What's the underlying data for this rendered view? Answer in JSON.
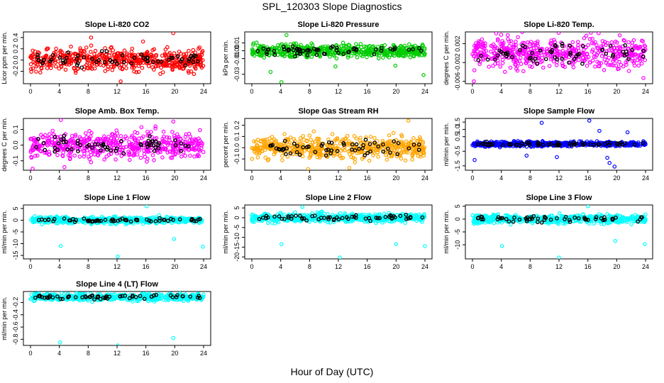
{
  "figure": {
    "title": "SPL_120303  Slope Diagnostics",
    "xlabel": "Hour of Day (UTC)"
  },
  "chart_data": [
    {
      "type": "scatter",
      "title": "Slope Li-820 CO2",
      "ylabel": "Licor ppm per min.",
      "color": "#ff0000",
      "x_ticks": [
        "0",
        "4",
        "8",
        "12",
        "16",
        "20",
        "24"
      ],
      "xlim": [
        0,
        24
      ],
      "y_ticks": [
        {
          "v": -0.2,
          "label": "-0.2"
        },
        {
          "v": 0.0,
          "label": "0.0"
        },
        {
          "v": 0.2,
          "label": "0.2"
        },
        {
          "v": 0.4,
          "label": "0.4"
        }
      ],
      "ylim": [
        -0.42,
        0.5
      ],
      "spread": 0.14,
      "outliers": [
        {
          "x": 8.4,
          "y": 0.4
        },
        {
          "x": 19.8,
          "y": 0.48
        },
        {
          "x": 12.5,
          "y": -0.38
        },
        {
          "x": 15.6,
          "y": 0.33
        }
      ]
    },
    {
      "type": "scatter",
      "title": "Slope Li-820 Pressure",
      "ylabel": "kPa per min.",
      "color": "#00cc00",
      "x_ticks": [
        "0",
        "4",
        "8",
        "12",
        "16",
        "20",
        "24"
      ],
      "xlim": [
        0,
        24
      ],
      "y_ticks": [
        {
          "v": -0.03,
          "label": "-0.03"
        },
        {
          "v": -0.01,
          "label": "-0.01"
        },
        {
          "v": 0.0,
          "label": "0.00"
        },
        {
          "v": 0.01,
          "label": "0.01"
        }
      ],
      "ylim": [
        -0.042,
        0.024
      ],
      "spread": 0.006,
      "outliers": [
        {
          "x": 4.8,
          "y": 0.02
        },
        {
          "x": 4.1,
          "y": -0.04
        },
        {
          "x": 23.8,
          "y": -0.031
        },
        {
          "x": 2.6,
          "y": -0.027
        },
        {
          "x": 11.6,
          "y": -0.02
        },
        {
          "x": 19.9,
          "y": -0.019
        }
      ]
    },
    {
      "type": "scatter",
      "title": "Slope Li-820 Temp.",
      "ylabel": "degrees C per min.",
      "color": "#ff00ff",
      "x_ticks": [
        "0",
        "4",
        "8",
        "12",
        "16",
        "20",
        "24"
      ],
      "xlim": [
        0,
        24
      ],
      "y_ticks": [
        {
          "v": -0.006,
          "label": "-0.006"
        },
        {
          "v": -0.002,
          "label": "-0.002"
        },
        {
          "v": 0.002,
          "label": "0.002"
        }
      ],
      "ylim": [
        -0.0065,
        0.0045
      ],
      "spread": 0.0022,
      "outliers": [
        {
          "x": 3.3,
          "y": 0.0042
        },
        {
          "x": 4.9,
          "y": 0.0038
        },
        {
          "x": 0.2,
          "y": -0.006
        },
        {
          "x": 23.7,
          "y": -0.0053
        }
      ]
    },
    {
      "type": "scatter",
      "title": "Slope Amb. Box Temp.",
      "ylabel": "degrees C per min.",
      "color": "#ff00ff",
      "x_ticks": [
        "0",
        "4",
        "8",
        "12",
        "16",
        "20",
        "24"
      ],
      "xlim": [
        0,
        24
      ],
      "y_ticks": [
        {
          "v": -0.1,
          "label": "-0.1"
        },
        {
          "v": 0.0,
          "label": "0.0"
        },
        {
          "v": 0.1,
          "label": "0.1"
        }
      ],
      "ylim": [
        -0.16,
        0.17
      ],
      "spread": 0.06,
      "outliers": [
        {
          "x": 4.2,
          "y": 0.16
        },
        {
          "x": 19.8,
          "y": 0.15
        },
        {
          "x": 0.3,
          "y": -0.15
        },
        {
          "x": 4.7,
          "y": -0.14
        }
      ]
    },
    {
      "type": "scatter",
      "title": "Slope Gas Stream RH",
      "ylabel": "percent per min.",
      "color": "#ffa500",
      "x_ticks": [
        "0",
        "4",
        "8",
        "12",
        "16",
        "20",
        "24"
      ],
      "xlim": [
        0,
        24
      ],
      "y_ticks": [
        {
          "v": -0.1,
          "label": "-0.1"
        },
        {
          "v": 0.0,
          "label": "0.0"
        },
        {
          "v": 0.1,
          "label": "0.1"
        },
        {
          "v": 0.2,
          "label": "0.2"
        }
      ],
      "ylim": [
        -0.2,
        0.26
      ],
      "spread": 0.07,
      "outliers": [
        {
          "x": 21.7,
          "y": 0.24
        },
        {
          "x": 7.8,
          "y": -0.19
        },
        {
          "x": 13.5,
          "y": -0.18
        }
      ]
    },
    {
      "type": "scatter",
      "title": "Slope Sample Flow",
      "ylabel": "ml/min per min.",
      "color": "#0000ff",
      "x_ticks": [
        "0",
        "4",
        "8",
        "12",
        "16",
        "20",
        "24"
      ],
      "xlim": [
        0,
        24
      ],
      "y_ticks": [
        {
          "v": -1.5,
          "label": "-1.5"
        },
        {
          "v": -0.5,
          "label": "-0.5"
        },
        {
          "v": 0.5,
          "label": "0.5"
        },
        {
          "v": 1.0,
          "label": "1.0"
        },
        {
          "v": 1.5,
          "label": "1.5"
        }
      ],
      "ylim": [
        -1.8,
        1.75
      ],
      "spread": 0.12,
      "outliers": [
        {
          "x": 16.2,
          "y": 1.6
        },
        {
          "x": 9.6,
          "y": 1.45
        },
        {
          "x": 19.0,
          "y": -1.3
        },
        {
          "x": 19.7,
          "y": -1.55
        },
        {
          "x": 18.7,
          "y": -0.95
        },
        {
          "x": 11.7,
          "y": -0.9
        },
        {
          "x": 0.3,
          "y": -1.1
        },
        {
          "x": 7.5,
          "y": -0.8
        },
        {
          "x": 17.6,
          "y": 0.9
        },
        {
          "x": 21.5,
          "y": 0.8
        }
      ]
    },
    {
      "type": "scatter",
      "title": "Slope Line 1 Flow",
      "ylabel": "ml/min per min.",
      "color": "#00ffff",
      "x_ticks": [
        "0",
        "4",
        "8",
        "12",
        "16",
        "20",
        "24"
      ],
      "xlim": [
        0,
        24
      ],
      "y_ticks": [
        {
          "v": -15,
          "label": "-15"
        },
        {
          "v": -10,
          "label": "-10"
        },
        {
          "v": -5,
          "label": "-5"
        },
        {
          "v": 0,
          "label": "0"
        },
        {
          "v": 5,
          "label": "5"
        }
      ],
      "ylim": [
        -16.5,
        6.5
      ],
      "spread": 1.0,
      "outliers": [
        {
          "x": 4.2,
          "y": -11
        },
        {
          "x": 12.1,
          "y": -15.5
        },
        {
          "x": 16.1,
          "y": 6
        },
        {
          "x": 19.9,
          "y": -8
        },
        {
          "x": 23.9,
          "y": -11.3
        }
      ]
    },
    {
      "type": "scatter",
      "title": "Slope Line 2 Flow",
      "ylabel": "ml/min per min.",
      "color": "#00ffff",
      "x_ticks": [
        "0",
        "4",
        "8",
        "12",
        "16",
        "20",
        "24"
      ],
      "xlim": [
        0,
        24
      ],
      "y_ticks": [
        {
          "v": -20,
          "label": "-20"
        },
        {
          "v": -15,
          "label": "-15"
        },
        {
          "v": -10,
          "label": "-10"
        },
        {
          "v": -5,
          "label": "-5"
        },
        {
          "v": 0,
          "label": "0"
        },
        {
          "v": 5,
          "label": "5"
        }
      ],
      "ylim": [
        -21,
        6.5
      ],
      "spread": 1.6,
      "outliers": [
        {
          "x": 4.1,
          "y": -13.5
        },
        {
          "x": 12.2,
          "y": -20.3
        },
        {
          "x": 20.0,
          "y": -13.5
        },
        {
          "x": 24.0,
          "y": -14.5
        },
        {
          "x": 7.0,
          "y": 5.5
        }
      ]
    },
    {
      "type": "scatter",
      "title": "Slope Line 3 Flow",
      "ylabel": "ml/min per min.",
      "color": "#00ffff",
      "x_ticks": [
        "0",
        "4",
        "8",
        "12",
        "16",
        "20",
        "24"
      ],
      "xlim": [
        0,
        24
      ],
      "y_ticks": [
        {
          "v": -10,
          "label": "-10"
        },
        {
          "v": -5,
          "label": "-5"
        },
        {
          "v": 0,
          "label": "0"
        },
        {
          "v": 5,
          "label": "5"
        }
      ],
      "ylim": [
        -15.5,
        5.5
      ],
      "spread": 1.2,
      "outliers": [
        {
          "x": 4.1,
          "y": -10.5
        },
        {
          "x": 12.0,
          "y": -15
        },
        {
          "x": 19.8,
          "y": -8.5
        },
        {
          "x": 23.9,
          "y": -9.8
        },
        {
          "x": 16.0,
          "y": 5
        }
      ]
    },
    {
      "type": "scatter",
      "title": "Slope Line 4 (LT) Flow",
      "ylabel": "ml/min per min.",
      "color": "#00ffff",
      "x_ticks": [
        "0",
        "4",
        "8",
        "12",
        "16",
        "20",
        "24"
      ],
      "xlim": [
        0,
        24
      ],
      "y_ticks": [
        {
          "v": -0.8,
          "label": "-0.8"
        },
        {
          "v": -0.6,
          "label": "-0.6"
        },
        {
          "v": -0.4,
          "label": "-0.4"
        },
        {
          "v": -0.2,
          "label": "-0.2"
        }
      ],
      "ylim": [
        -0.9,
        -0.02
      ],
      "center": -0.11,
      "spread": 0.04,
      "outliers": [
        {
          "x": 4.1,
          "y": -0.85
        },
        {
          "x": 12.1,
          "y": -0.9
        },
        {
          "x": 19.8,
          "y": -0.78
        },
        {
          "x": 16.2,
          "y": -0.03
        }
      ]
    }
  ]
}
